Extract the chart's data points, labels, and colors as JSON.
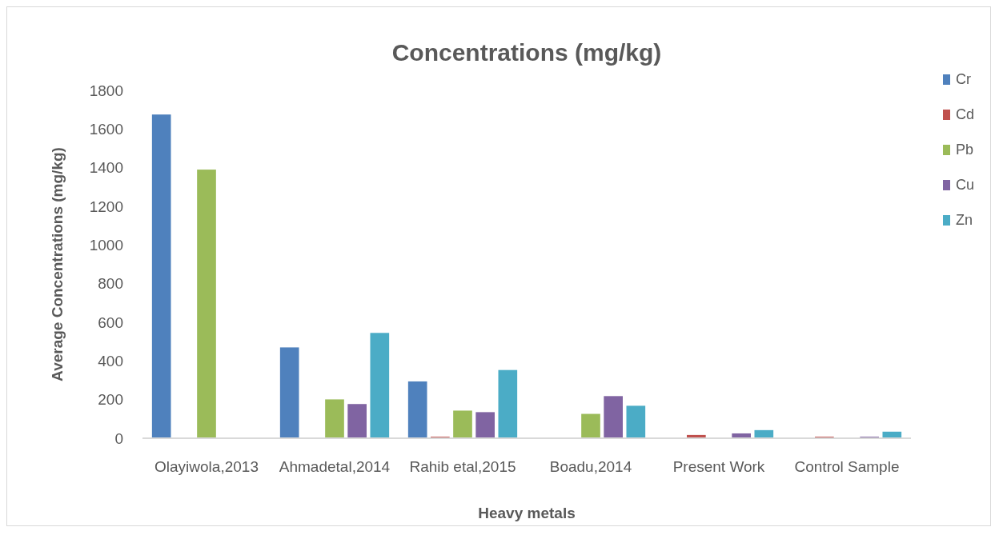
{
  "chart_data": {
    "type": "bar",
    "title": "Concentrations (mg/kg)",
    "xlabel": "Heavy metals",
    "ylabel": "Average Concentrations  (mg/kg)",
    "categories": [
      "Olayiwola,2013",
      "Ahmadetal,2014",
      "Rahib etal,2015",
      "Boadu,2014",
      "Present Work",
      "Control Sample"
    ],
    "series": [
      {
        "name": "Cr",
        "color": "#4f81bd",
        "values": [
          1675,
          470,
          294,
          null,
          null,
          null
        ]
      },
      {
        "name": "Cd",
        "color": "#c0504d",
        "values": [
          null,
          null,
          8,
          null,
          17,
          8
        ]
      },
      {
        "name": "Pb",
        "color": "#9bbb59",
        "values": [
          1390,
          201,
          143,
          126,
          null,
          null
        ]
      },
      {
        "name": "Cu",
        "color": "#8064a2",
        "values": [
          null,
          177,
          135,
          218,
          25,
          8
        ]
      },
      {
        "name": "Zn",
        "color": "#4bacc6",
        "values": [
          null,
          545,
          353,
          168,
          42,
          34
        ]
      }
    ],
    "ylim": [
      0,
      1800
    ],
    "yticks": [
      0,
      200,
      400,
      600,
      800,
      1000,
      1200,
      1400,
      1600,
      1800
    ],
    "grid": false,
    "legend": "right"
  }
}
